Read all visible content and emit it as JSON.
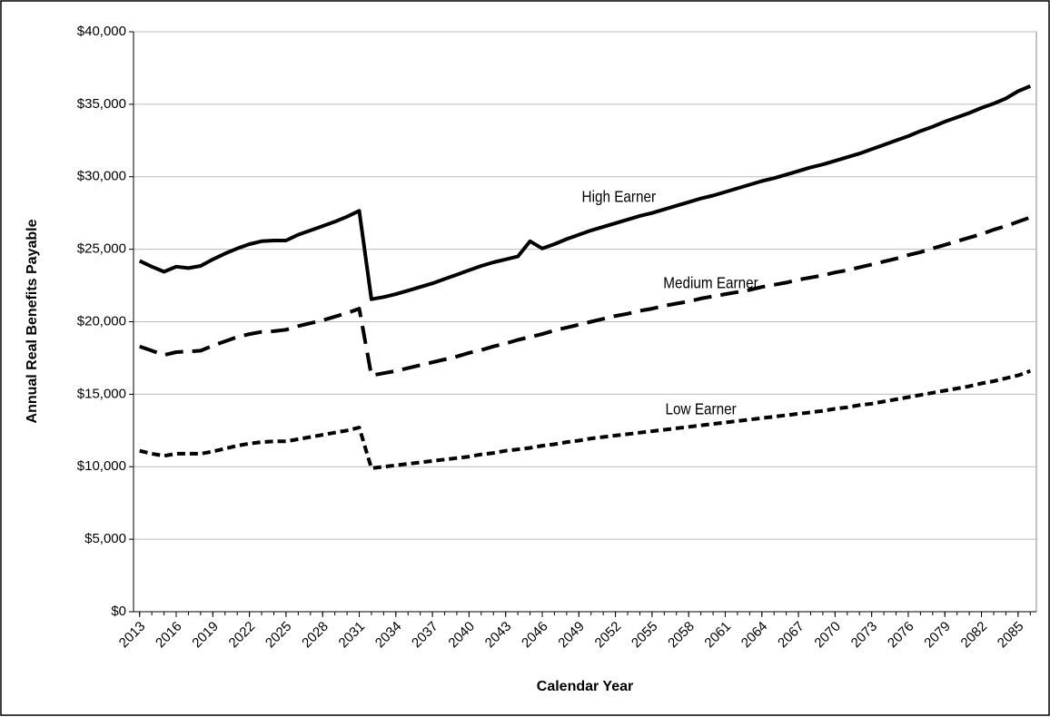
{
  "chart_data": {
    "type": "line",
    "x_label": "Calendar Year",
    "y_label": "Annual Real Benefits Payable",
    "x": [
      2013,
      2014,
      2015,
      2016,
      2017,
      2018,
      2019,
      2020,
      2021,
      2022,
      2023,
      2024,
      2025,
      2026,
      2027,
      2028,
      2029,
      2030,
      2031,
      2032,
      2033,
      2034,
      2035,
      2036,
      2037,
      2038,
      2039,
      2040,
      2041,
      2042,
      2043,
      2044,
      2045,
      2046,
      2047,
      2048,
      2049,
      2050,
      2051,
      2052,
      2053,
      2054,
      2055,
      2056,
      2057,
      2058,
      2059,
      2060,
      2061,
      2062,
      2063,
      2064,
      2065,
      2066,
      2067,
      2068,
      2069,
      2070,
      2071,
      2072,
      2073,
      2074,
      2075,
      2076,
      2077,
      2078,
      2079,
      2080,
      2081,
      2082,
      2083,
      2084,
      2085,
      2086
    ],
    "xlim": [
      2012.5,
      2086.5
    ],
    "xticks": [
      2013,
      2016,
      2019,
      2022,
      2025,
      2028,
      2031,
      2034,
      2037,
      2040,
      2043,
      2046,
      2049,
      2052,
      2055,
      2058,
      2061,
      2064,
      2067,
      2070,
      2073,
      2076,
      2079,
      2082,
      2085
    ],
    "ylim": [
      0,
      40000
    ],
    "yticks": [
      {
        "value": 0,
        "label": "$0"
      },
      {
        "value": 5000,
        "label": "$5,000"
      },
      {
        "value": 10000,
        "label": "$10,000"
      },
      {
        "value": 15000,
        "label": "$15,000"
      },
      {
        "value": 20000,
        "label": "$20,000"
      },
      {
        "value": 25000,
        "label": "$25,000"
      },
      {
        "value": 30000,
        "label": "$30,000"
      },
      {
        "value": 35000,
        "label": "$35,000"
      },
      {
        "value": 40000,
        "label": "$40,000"
      }
    ],
    "grid": true,
    "series": [
      {
        "name": "High Earner",
        "color": "#000000",
        "line_style": "solid",
        "values": [
          24200,
          23800,
          23450,
          23800,
          23700,
          23850,
          24300,
          24700,
          25050,
          25350,
          25550,
          25600,
          25600,
          26000,
          26300,
          26600,
          26900,
          27250,
          27650,
          21550,
          21700,
          21900,
          22150,
          22400,
          22650,
          22950,
          23250,
          23550,
          23850,
          24100,
          24300,
          24500,
          25550,
          25050,
          25350,
          25700,
          26000,
          26300,
          26550,
          26800,
          27050,
          27300,
          27500,
          27750,
          28000,
          28250,
          28500,
          28700,
          28950,
          29200,
          29450,
          29700,
          29900,
          30150,
          30400,
          30650,
          30850,
          31100,
          31350,
          31600,
          31900,
          32200,
          32500,
          32800,
          33150,
          33450,
          33800,
          34100,
          34400,
          34750,
          35050,
          35400,
          35900,
          36250
        ]
      },
      {
        "name": "Medium Earner",
        "color": "#000000",
        "line_style": "dashed",
        "values": [
          18300,
          18000,
          17700,
          17900,
          17950,
          18000,
          18350,
          18650,
          18950,
          19150,
          19300,
          19350,
          19450,
          19700,
          19900,
          20100,
          20350,
          20600,
          20900,
          16300,
          16450,
          16600,
          16800,
          17000,
          17200,
          17400,
          17600,
          17850,
          18050,
          18300,
          18500,
          18750,
          18950,
          19150,
          19400,
          19600,
          19800,
          20000,
          20200,
          20400,
          20550,
          20750,
          20900,
          21100,
          21250,
          21400,
          21600,
          21750,
          21900,
          22050,
          22200,
          22400,
          22550,
          22700,
          22900,
          23050,
          23200,
          23400,
          23550,
          23750,
          23950,
          24150,
          24350,
          24600,
          24800,
          25050,
          25300,
          25550,
          25800,
          26050,
          26350,
          26600,
          26900,
          27200
        ]
      },
      {
        "name": "Low Earner",
        "color": "#000000",
        "line_style": "dotted",
        "values": [
          11100,
          10900,
          10750,
          10900,
          10900,
          10900,
          11050,
          11250,
          11450,
          11600,
          11700,
          11750,
          11750,
          11900,
          12050,
          12200,
          12350,
          12500,
          12700,
          9900,
          10000,
          10100,
          10200,
          10300,
          10400,
          10500,
          10600,
          10700,
          10850,
          10950,
          11100,
          11200,
          11300,
          11450,
          11550,
          11700,
          11800,
          11950,
          12050,
          12150,
          12250,
          12350,
          12450,
          12550,
          12650,
          12750,
          12850,
          12950,
          13050,
          13150,
          13250,
          13350,
          13450,
          13550,
          13650,
          13750,
          13850,
          14000,
          14100,
          14250,
          14350,
          14500,
          14650,
          14800,
          14950,
          15100,
          15250,
          15400,
          15550,
          15750,
          15900,
          16100,
          16300,
          16600
        ]
      }
    ]
  }
}
